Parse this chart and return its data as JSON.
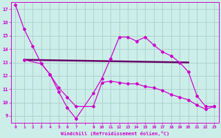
{
  "background_color": "#cceee8",
  "grid_color": "#aacccc",
  "line_color": "#cc00cc",
  "xlabel": "Windchill (Refroidissement éolien,°C)",
  "xlim": [
    -0.5,
    23.5
  ],
  "ylim": [
    8.5,
    17.5
  ],
  "yticks": [
    9,
    10,
    11,
    12,
    13,
    14,
    15,
    16,
    17
  ],
  "series1_x": [
    0,
    1,
    2,
    3,
    4,
    5,
    6,
    7,
    9,
    10,
    11,
    12,
    13,
    14,
    15,
    16,
    17,
    18,
    19,
    20,
    21,
    22,
    23
  ],
  "series1_y": [
    17.3,
    15.5,
    14.2,
    12.9,
    12.1,
    10.8,
    9.6,
    8.8,
    10.7,
    11.8,
    13.3,
    14.9,
    14.9,
    14.6,
    14.9,
    14.3,
    13.8,
    13.5,
    13.0,
    12.3,
    10.5,
    9.7,
    9.7
  ],
  "series2_x": [
    1,
    3,
    4,
    5,
    6,
    7,
    9,
    10,
    11,
    12,
    13,
    14,
    15,
    16,
    17,
    18,
    19,
    20,
    21,
    22,
    23
  ],
  "series2_y": [
    13.2,
    12.9,
    12.1,
    11.1,
    10.4,
    9.7,
    9.7,
    11.5,
    11.6,
    11.5,
    11.4,
    11.4,
    11.2,
    11.1,
    10.9,
    10.6,
    10.4,
    10.2,
    9.8,
    9.5,
    9.7
  ],
  "series3_x": [
    1,
    20
  ],
  "series3_y": [
    13.2,
    13.0
  ],
  "series3_color": "#660066",
  "series3_linewidth": 1.8
}
